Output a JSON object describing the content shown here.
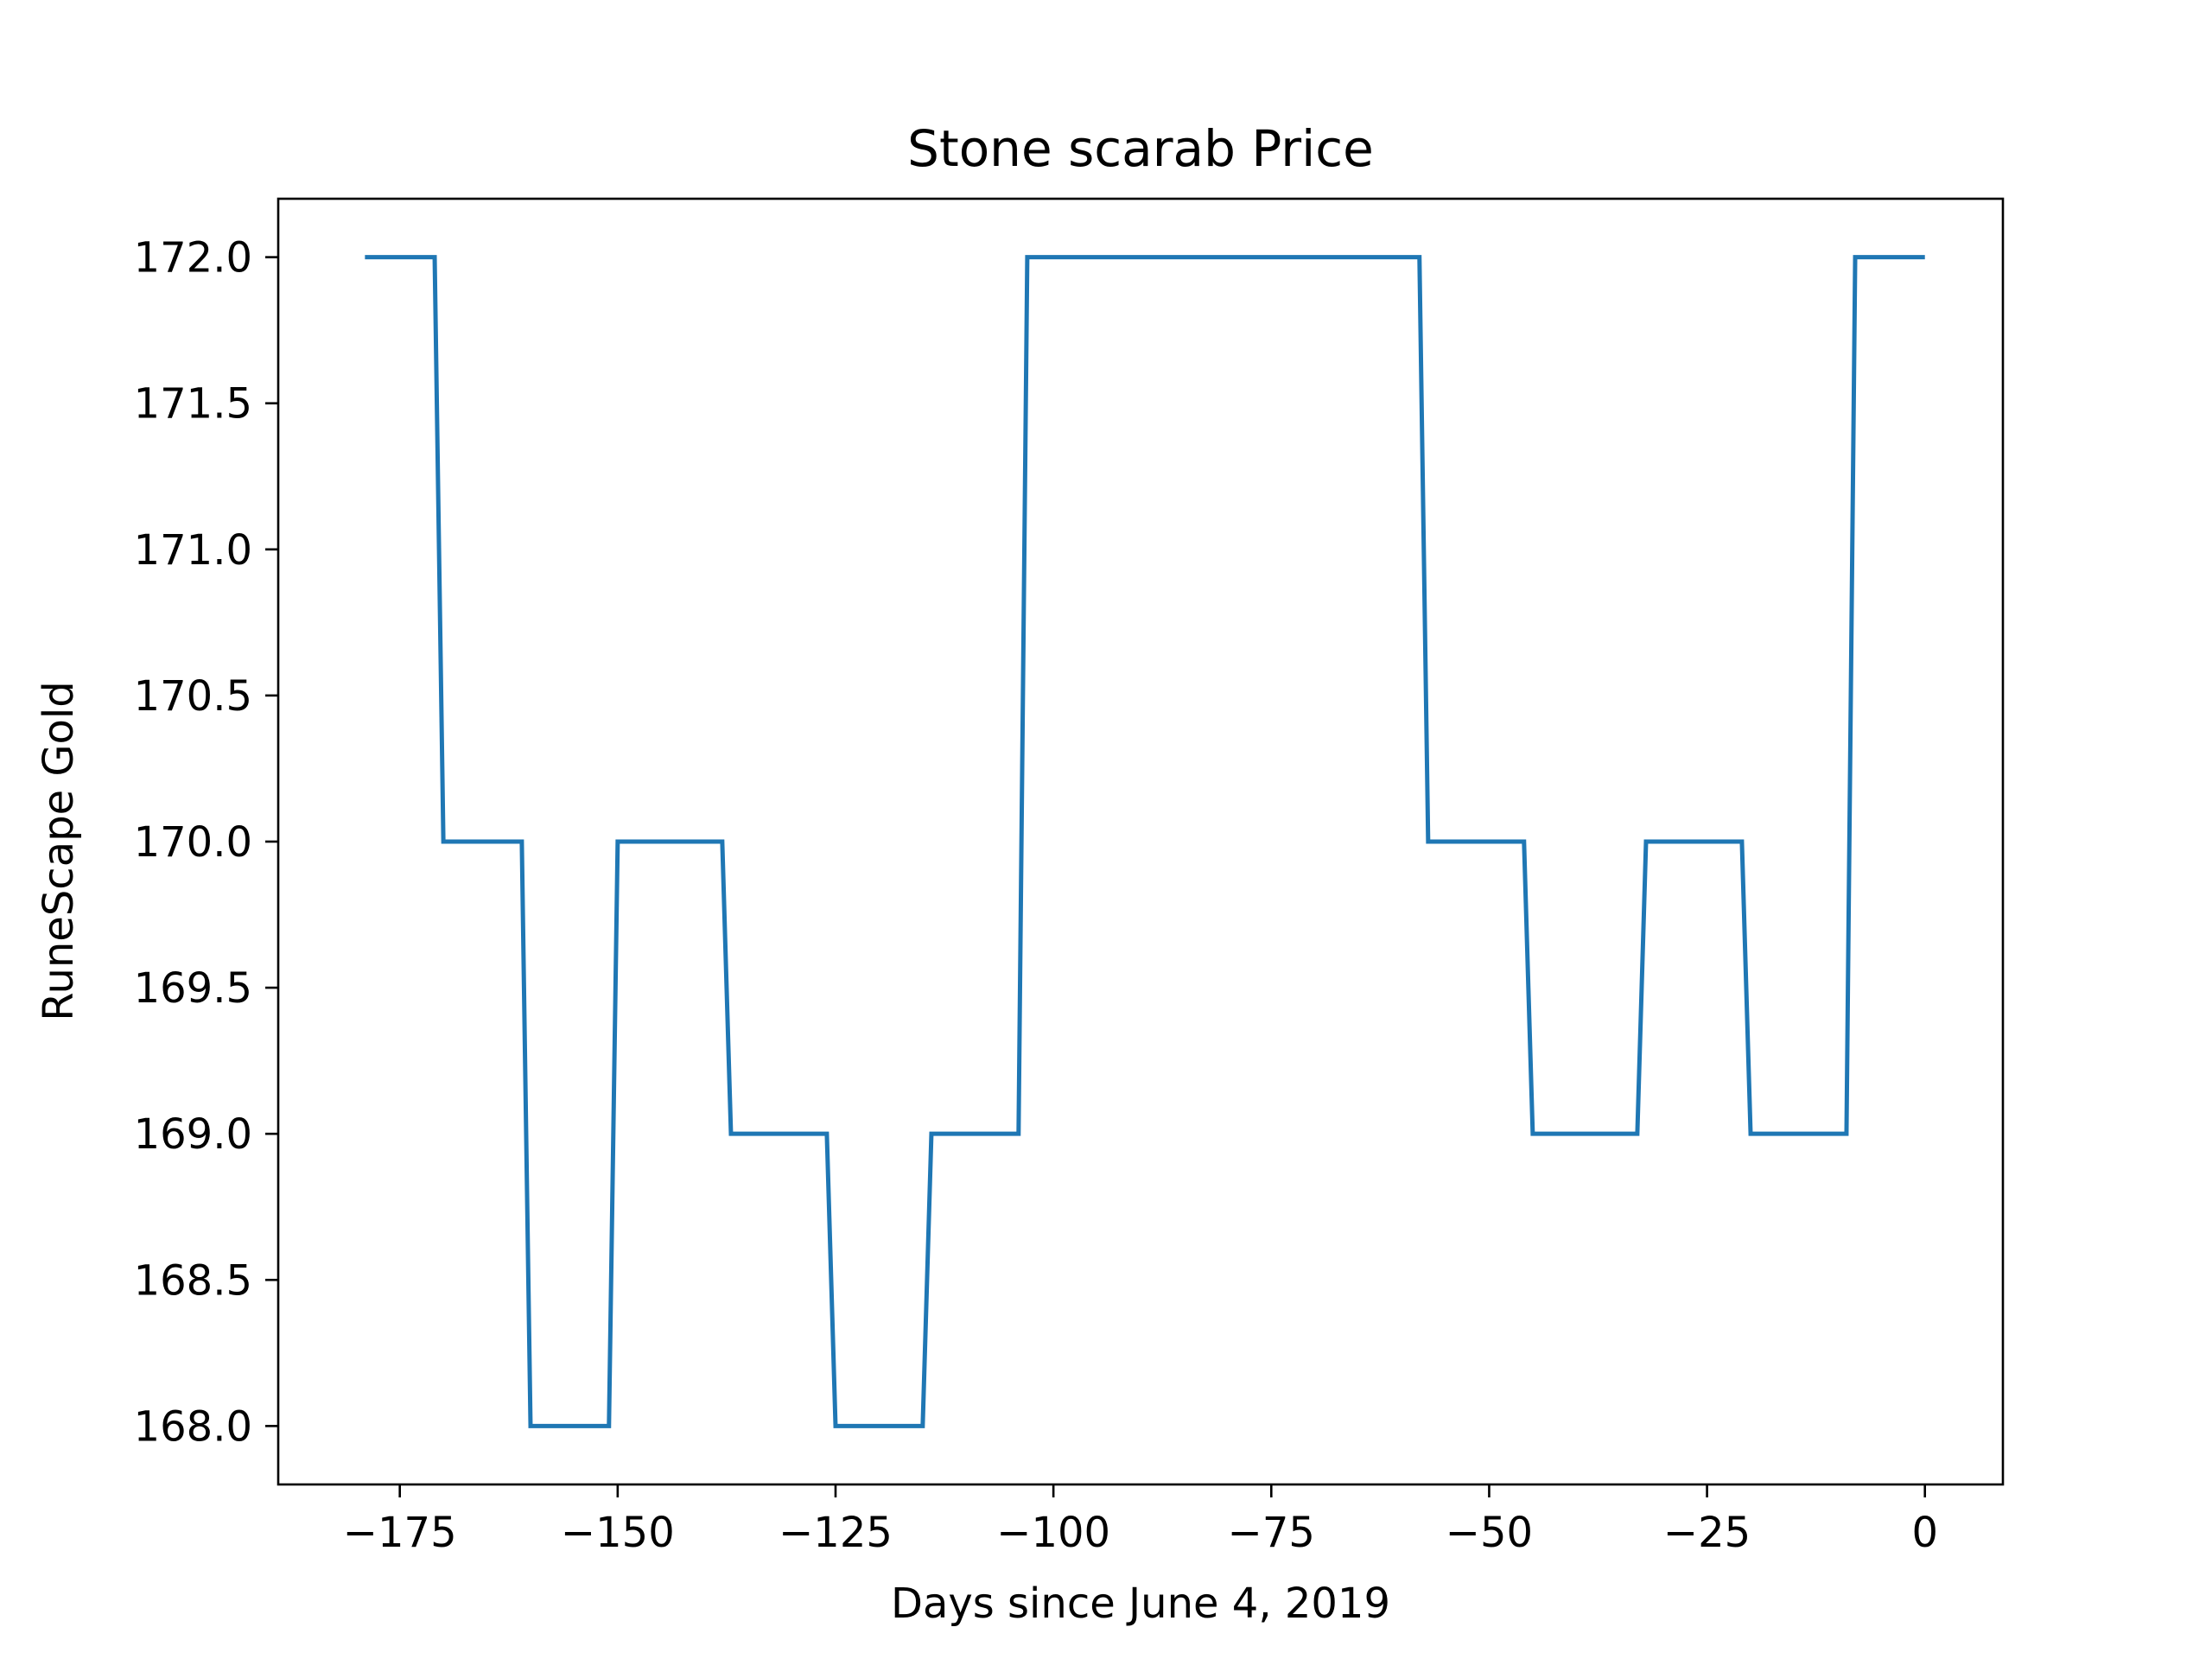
{
  "chart_data": {
    "type": "line",
    "title": "Stone scarab Price",
    "xlabel": "Days since June 4, 2019",
    "ylabel": "RuneScape Gold",
    "xlim": [
      -188.95,
      8.95
    ],
    "ylim": [
      167.8,
      172.2
    ],
    "grid": false,
    "line_color": "#1f77b4",
    "x_ticks": [
      -175,
      -150,
      -125,
      -100,
      -75,
      -50,
      -25,
      0
    ],
    "x_tick_labels": [
      "−175",
      "−150",
      "−125",
      "−100",
      "−75",
      "−50",
      "−25",
      "0"
    ],
    "y_ticks": [
      168.0,
      168.5,
      169.0,
      169.5,
      170.0,
      170.5,
      171.0,
      171.5,
      172.0
    ],
    "y_tick_labels": [
      "168.0",
      "168.5",
      "169.0",
      "169.5",
      "170.0",
      "170.5",
      "171.0",
      "171.5",
      "172.0"
    ],
    "series": [
      {
        "x": [
          -179,
          -171,
          -170,
          -161,
          -160,
          -151,
          -150,
          -138,
          -137,
          -126,
          -125,
          -115,
          -114,
          -104,
          -103,
          -58,
          -57,
          -46,
          -45,
          -33,
          -32,
          -21,
          -20,
          -9,
          -8,
          0
        ],
        "y": [
          172,
          172,
          170,
          170,
          168,
          168,
          170,
          170,
          169,
          169,
          168,
          168,
          169,
          169,
          172,
          172,
          170,
          170,
          169,
          169,
          170,
          170,
          169,
          169,
          172,
          172
        ]
      }
    ]
  }
}
